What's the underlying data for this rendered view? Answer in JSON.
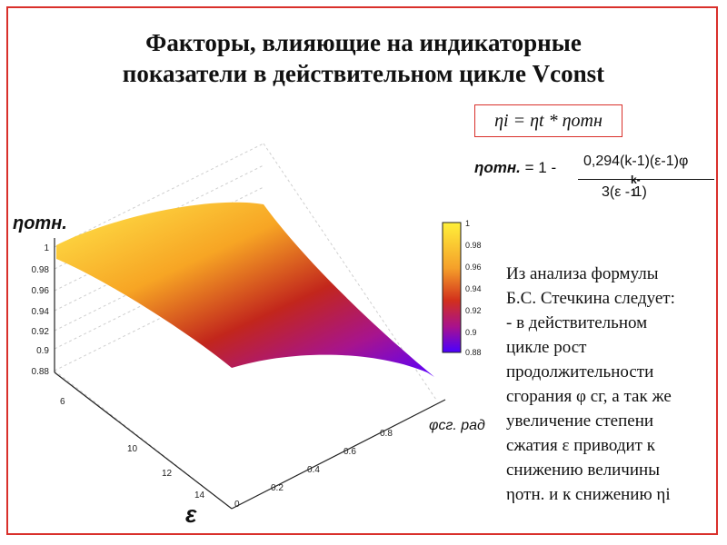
{
  "slide": {
    "title_line1": "Факторы, влияющие на индикаторные",
    "title_line2": "показатели в действительном цикле Vconst",
    "formula_main": "ηi = ηt * ηотн",
    "eta_rel_label": "ηотн.",
    "eta_rel_eq": "= 1 -",
    "eta_rel_numerator": "0,294(k-1)(ε-1)φ",
    "eta_rel_denominator": "3(ε      - 1)",
    "eta_rel_exponent": "k-1",
    "conclusion_lines": [
      "Из анализа формулы",
      "Б.С. Стечкина следует:",
      "- в действительном",
      "цикле рост",
      "продолжительности",
      "сгорания φ сг, а так же",
      "увеличение степени",
      "сжатия ε приводит к",
      "снижению величины",
      "ηотн. и к снижению ηi"
    ]
  },
  "chart_data": {
    "type": "surface",
    "z_label": "ηотн.",
    "x_label": "ε",
    "y_label": "φсг. рад",
    "z_ticks": [
      "1",
      "0.98",
      "0.96",
      "0.94",
      "0.92",
      "0.9",
      "0.88"
    ],
    "x_ticks": [
      "6",
      "10",
      "12",
      "14"
    ],
    "y_ticks": [
      "0",
      "0.2",
      "0.4",
      "0.6",
      "0.8"
    ],
    "colorbar_ticks": [
      "1",
      "0.98",
      "0.96",
      "0.94",
      "0.92",
      "0.9",
      "0.88"
    ],
    "colorbar_range": [
      0.88,
      1.0
    ]
  }
}
